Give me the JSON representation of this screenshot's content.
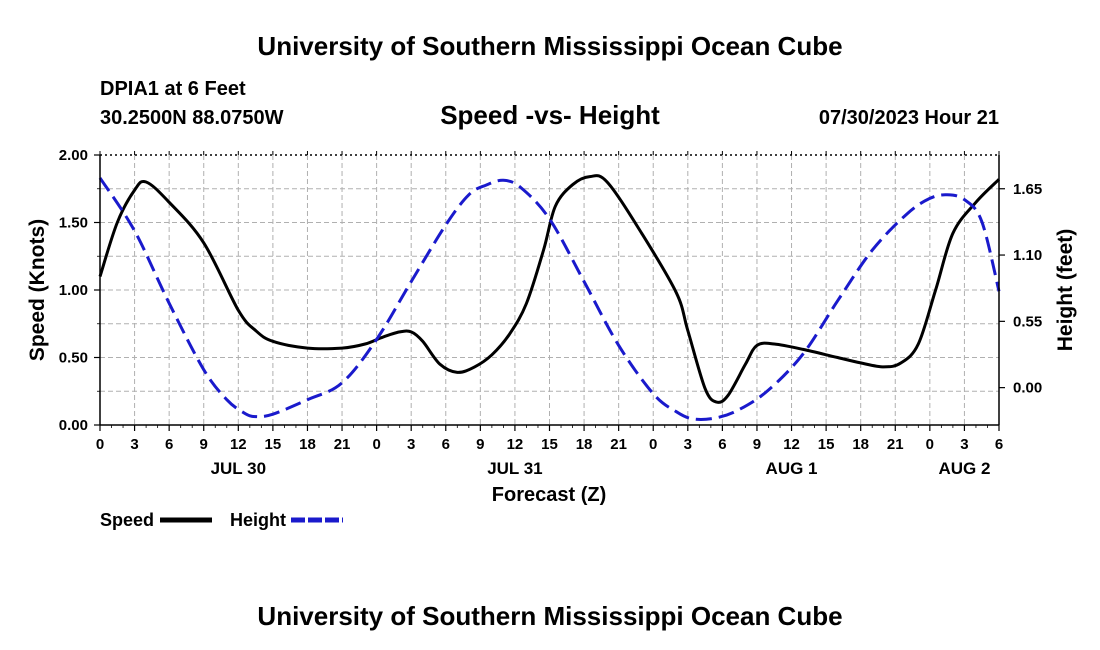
{
  "header": {
    "title": "University of Southern Mississippi Ocean Cube",
    "station": "DPIA1 at 6 Feet",
    "coords": "30.2500N  88.0750W",
    "subtitle": "Speed -vs- Height",
    "datetime": "07/30/2023 Hour 21"
  },
  "footer": {
    "title": "University of Southern Mississippi Ocean Cube"
  },
  "legend": {
    "speed_label": "Speed",
    "height_label": "Height"
  },
  "chart_data": {
    "type": "line",
    "title": "Speed -vs- Height",
    "xlabel": "Forecast (Z)",
    "ylabel": "Speed (Knots)",
    "y2label": "Height (feet)",
    "x_range": [
      0,
      78
    ],
    "ylim": [
      0,
      2.0
    ],
    "y2lim": [
      -0.31,
      1.93
    ],
    "y_ticks": [
      0.0,
      0.5,
      1.0,
      1.5,
      2.0
    ],
    "y_tick_labels": [
      "0.00",
      "0.50",
      "1.00",
      "1.50",
      "2.00"
    ],
    "y2_ticks": [
      0.0,
      0.55,
      1.1,
      1.65
    ],
    "y2_tick_labels": [
      "0.00",
      "0.55",
      "1.10",
      "1.65"
    ],
    "x_ticks": [
      0,
      3,
      6,
      9,
      12,
      15,
      18,
      21,
      24,
      27,
      30,
      33,
      36,
      39,
      42,
      45,
      48,
      51,
      54,
      57,
      60,
      63,
      66,
      69,
      72,
      75,
      78
    ],
    "x_tick_labels": [
      "0",
      "3",
      "6",
      "9",
      "12",
      "15",
      "18",
      "21",
      "0",
      "3",
      "6",
      "9",
      "12",
      "15",
      "18",
      "21",
      "0",
      "3",
      "6",
      "9",
      "12",
      "15",
      "18",
      "21",
      "0",
      "3",
      "6"
    ],
    "day_labels": [
      {
        "x": 12,
        "label": "JUL 30"
      },
      {
        "x": 36,
        "label": "JUL 31"
      },
      {
        "x": 60,
        "label": "AUG 1"
      },
      {
        "x": 75,
        "label": "AUG 2"
      }
    ],
    "grid": true,
    "series": [
      {
        "name": "Speed",
        "axis": "left",
        "color": "#000000",
        "dash": "solid",
        "points": [
          [
            0,
            1.1
          ],
          [
            1.5,
            1.5
          ],
          [
            3,
            1.74
          ],
          [
            4,
            1.8
          ],
          [
            6,
            1.65
          ],
          [
            9,
            1.35
          ],
          [
            12,
            0.85
          ],
          [
            13.5,
            0.7
          ],
          [
            15,
            0.62
          ],
          [
            18,
            0.57
          ],
          [
            21,
            0.57
          ],
          [
            23,
            0.6
          ],
          [
            24.5,
            0.65
          ],
          [
            26,
            0.69
          ],
          [
            27,
            0.69
          ],
          [
            28,
            0.62
          ],
          [
            29.5,
            0.45
          ],
          [
            31,
            0.39
          ],
          [
            32.5,
            0.43
          ],
          [
            34,
            0.52
          ],
          [
            35.5,
            0.67
          ],
          [
            37,
            0.9
          ],
          [
            38.5,
            1.3
          ],
          [
            39.5,
            1.62
          ],
          [
            41,
            1.78
          ],
          [
            42.5,
            1.84
          ],
          [
            44,
            1.8
          ],
          [
            47,
            1.42
          ],
          [
            50,
            0.98
          ],
          [
            51,
            0.7
          ],
          [
            52.5,
            0.27
          ],
          [
            53.5,
            0.17
          ],
          [
            54.5,
            0.22
          ],
          [
            56,
            0.45
          ],
          [
            57,
            0.59
          ],
          [
            58.5,
            0.6
          ],
          [
            61,
            0.56
          ],
          [
            64,
            0.5
          ],
          [
            66,
            0.46
          ],
          [
            68,
            0.43
          ],
          [
            69.5,
            0.46
          ],
          [
            71,
            0.6
          ],
          [
            72.5,
            1.0
          ],
          [
            74,
            1.42
          ],
          [
            76,
            1.65
          ],
          [
            78,
            1.82
          ]
        ]
      },
      {
        "name": "Height",
        "axis": "right",
        "color": "#1a1acc",
        "dash": "dashed",
        "points": [
          [
            0,
            1.74
          ],
          [
            3,
            1.3
          ],
          [
            6,
            0.7
          ],
          [
            9,
            0.15
          ],
          [
            11,
            -0.1
          ],
          [
            12.5,
            -0.21
          ],
          [
            13.5,
            -0.24
          ],
          [
            15,
            -0.22
          ],
          [
            18,
            -0.1
          ],
          [
            21,
            0.04
          ],
          [
            24,
            0.4
          ],
          [
            27,
            0.88
          ],
          [
            30,
            1.35
          ],
          [
            32,
            1.6
          ],
          [
            33.5,
            1.68
          ],
          [
            35,
            1.72
          ],
          [
            36.5,
            1.66
          ],
          [
            39,
            1.4
          ],
          [
            42,
            0.88
          ],
          [
            45,
            0.35
          ],
          [
            48,
            -0.05
          ],
          [
            50,
            -0.2
          ],
          [
            51.5,
            -0.26
          ],
          [
            53.5,
            -0.25
          ],
          [
            55.5,
            -0.18
          ],
          [
            58,
            -0.02
          ],
          [
            61,
            0.28
          ],
          [
            64,
            0.72
          ],
          [
            67,
            1.14
          ],
          [
            70,
            1.44
          ],
          [
            72,
            1.57
          ],
          [
            73.5,
            1.6
          ],
          [
            75,
            1.56
          ],
          [
            76.5,
            1.38
          ],
          [
            78,
            0.8
          ]
        ]
      }
    ]
  }
}
